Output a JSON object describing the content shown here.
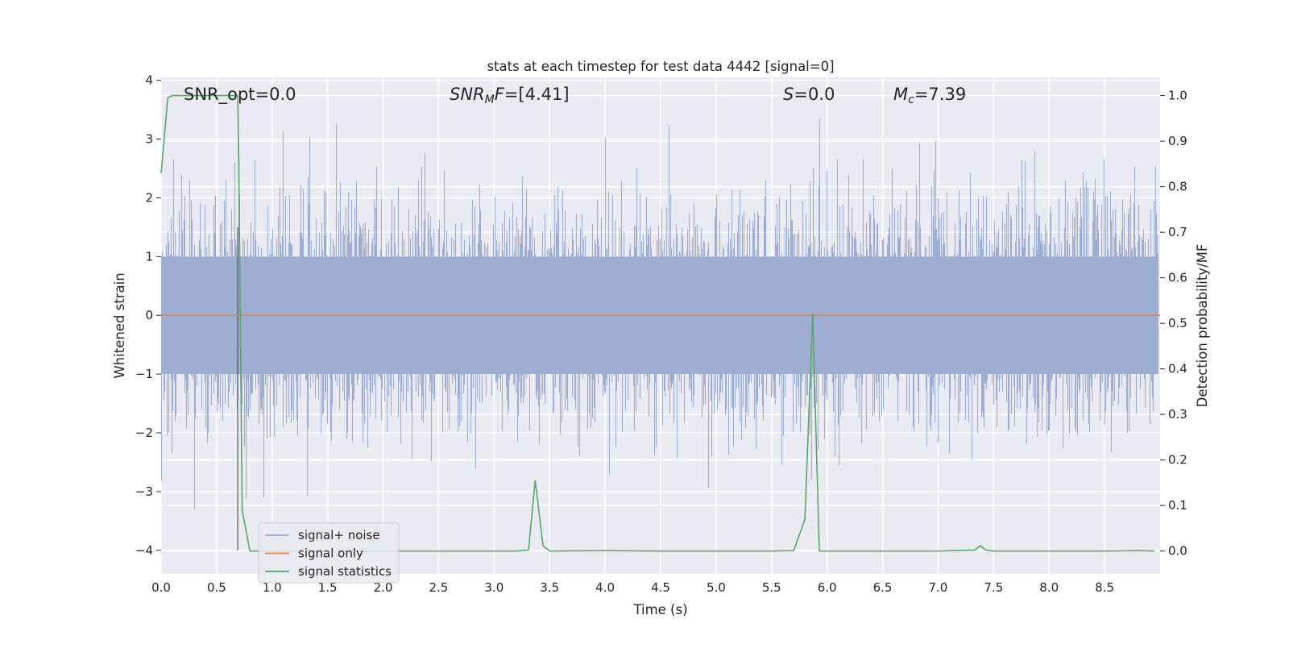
{
  "chart_data": {
    "type": "line",
    "title": "stats at each timestep for test data 4442 [signal=0]",
    "xlabel": "Time (s)",
    "ylabel": "Whitened strain",
    "y2label": "Detection probability/MF",
    "xlim": [
      0.0,
      9.0
    ],
    "ylim": [
      -4.4,
      4.05
    ],
    "y2lim": [
      -0.05,
      1.04
    ],
    "xticks": [
      "0.0",
      "0.5",
      "1.0",
      "1.5",
      "2.0",
      "2.5",
      "3.0",
      "3.5",
      "4.0",
      "4.5",
      "5.0",
      "5.5",
      "6.0",
      "6.5",
      "7.0",
      "7.5",
      "8.0",
      "8.5"
    ],
    "yticks": [
      "4",
      "3",
      "2",
      "1",
      "0",
      "−1",
      "−2",
      "−3",
      "−4"
    ],
    "y2ticks": [
      "1.0",
      "0.9",
      "0.8",
      "0.7",
      "0.6",
      "0.5",
      "0.4",
      "0.3",
      "0.2",
      "0.1",
      "0.0"
    ],
    "grid": true,
    "legend_position": "lower-left",
    "annotations": [
      {
        "label": "SNR_opt=0.0"
      },
      {
        "label": "SNR_MF=[4.41]",
        "italic_prefix": "SNR",
        "sub": "M",
        "italic_mid": "F",
        "rest": "=[4.41]"
      },
      {
        "label": "S=0.0",
        "italic_prefix": "S",
        "rest": "=0.0"
      },
      {
        "label": "M_c=7.39",
        "italic_prefix": "M",
        "sub": "c",
        "rest": "=7.39"
      }
    ],
    "vline": {
      "x": 0.69,
      "y": [
        -4.0,
        1.5
      ]
    },
    "series": [
      {
        "name": "signal+ noise",
        "color": "#9aaad0",
        "axis": "left",
        "kind": "noise",
        "sigma": 0.95,
        "peak_max": 3.7,
        "peak_min": -3.7,
        "seed": 4442
      },
      {
        "name": "signal only",
        "color": "#dd8452",
        "axis": "left",
        "x": [
          0.0,
          9.0
        ],
        "y": [
          0.0,
          0.0
        ]
      },
      {
        "name": "signal statistics",
        "color": "#55a868",
        "axis": "right",
        "x": [
          0.0,
          0.06,
          0.1,
          0.2,
          0.3,
          0.4,
          0.5,
          0.6,
          0.69,
          0.7,
          0.73,
          0.8,
          0.9,
          1.0,
          1.5,
          2.0,
          2.5,
          3.0,
          3.2,
          3.31,
          3.37,
          3.44,
          3.5,
          4.0,
          4.5,
          5.0,
          5.5,
          5.7,
          5.8,
          5.87,
          5.93,
          6.0,
          6.5,
          7.0,
          7.33,
          7.38,
          7.43,
          7.5,
          8.0,
          8.5,
          8.8,
          8.95
        ],
        "y": [
          0.83,
          0.995,
          1.0,
          1.0,
          1.0,
          1.0,
          1.0,
          1.0,
          1.0,
          0.85,
          0.09,
          0.0,
          0.0,
          0.0,
          0.0,
          0.0,
          0.0,
          0.0,
          0.0,
          0.002,
          0.155,
          0.012,
          0.0,
          0.001,
          0.0,
          0.0,
          0.0,
          0.001,
          0.07,
          0.52,
          0.0,
          0.0,
          0.0,
          0.0,
          0.002,
          0.012,
          0.002,
          0.0,
          0.0,
          0.0,
          0.001,
          0.0
        ]
      }
    ]
  }
}
